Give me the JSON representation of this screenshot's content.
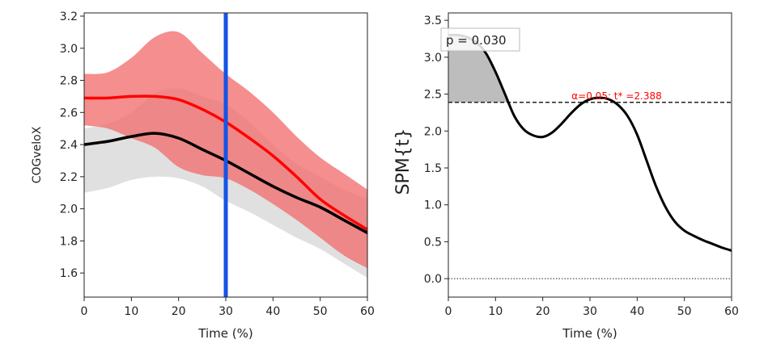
{
  "chart_data": [
    {
      "type": "line",
      "xlabel": "Time (%)",
      "ylabel": "COGveloX",
      "xlim": [
        0,
        60
      ],
      "ylim": [
        1.45,
        3.22
      ],
      "xticks": [
        0,
        10,
        20,
        30,
        40,
        50,
        60
      ],
      "yticks": [
        1.6,
        1.8,
        2.0,
        2.2,
        2.4,
        2.6,
        2.8,
        3.0,
        3.2
      ],
      "grid": false,
      "vertical_marker": {
        "x": 30,
        "color": "#1455e6"
      },
      "series": [
        {
          "color": "#ff0000",
          "band_color": "#f26e6e",
          "x": [
            0,
            5,
            10,
            15,
            20,
            25,
            30,
            35,
            40,
            45,
            50,
            55,
            60
          ],
          "mean": [
            2.69,
            2.69,
            2.7,
            2.7,
            2.68,
            2.62,
            2.54,
            2.44,
            2.33,
            2.2,
            2.06,
            1.96,
            1.87
          ],
          "upper": [
            2.84,
            2.85,
            2.94,
            3.07,
            3.1,
            2.97,
            2.84,
            2.73,
            2.6,
            2.45,
            2.32,
            2.22,
            2.12
          ],
          "lower": [
            2.52,
            2.5,
            2.44,
            2.38,
            2.26,
            2.21,
            2.19,
            2.12,
            2.03,
            1.93,
            1.82,
            1.71,
            1.63
          ]
        },
        {
          "color": "#000000",
          "band_color": "#dddddd",
          "x": [
            0,
            5,
            10,
            15,
            20,
            25,
            30,
            35,
            40,
            45,
            50,
            55,
            60
          ],
          "mean": [
            2.4,
            2.42,
            2.45,
            2.47,
            2.44,
            2.37,
            2.3,
            2.22,
            2.14,
            2.07,
            2.01,
            1.93,
            1.85
          ],
          "upper": [
            2.5,
            2.53,
            2.6,
            2.72,
            2.75,
            2.7,
            2.65,
            2.54,
            2.4,
            2.28,
            2.2,
            2.12,
            2.06
          ],
          "lower": [
            2.1,
            2.13,
            2.18,
            2.2,
            2.19,
            2.14,
            2.05,
            1.98,
            1.9,
            1.82,
            1.75,
            1.66,
            1.57
          ]
        }
      ]
    },
    {
      "type": "line",
      "xlabel": "Time (%)",
      "ylabel": "SPM{t}",
      "xlim": [
        0,
        60
      ],
      "ylim": [
        -0.25,
        3.6
      ],
      "xticks": [
        0,
        10,
        20,
        30,
        40,
        50,
        60
      ],
      "yticks": [
        0.0,
        0.5,
        1.0,
        1.5,
        2.0,
        2.5,
        3.0,
        3.5
      ],
      "grid": false,
      "threshold": {
        "value": 2.388,
        "label": "α=0.05:  t* =2.388",
        "color": "#ff0000"
      },
      "zero_line": 0.0,
      "p_value_label": "p = 0.030",
      "series": [
        {
          "color": "#000000",
          "x": [
            0,
            2,
            4,
            6,
            8,
            10,
            12,
            14,
            16,
            18,
            20,
            22,
            24,
            26,
            28,
            30,
            32,
            34,
            36,
            38,
            40,
            42,
            44,
            46,
            48,
            50,
            52,
            54,
            56,
            58,
            60
          ],
          "y": [
            3.3,
            3.3,
            3.27,
            3.2,
            3.05,
            2.8,
            2.5,
            2.2,
            2.02,
            1.94,
            1.92,
            1.98,
            2.1,
            2.24,
            2.36,
            2.43,
            2.45,
            2.43,
            2.35,
            2.2,
            1.95,
            1.6,
            1.25,
            0.97,
            0.77,
            0.65,
            0.58,
            0.52,
            0.47,
            0.42,
            0.38
          ]
        }
      ]
    }
  ]
}
